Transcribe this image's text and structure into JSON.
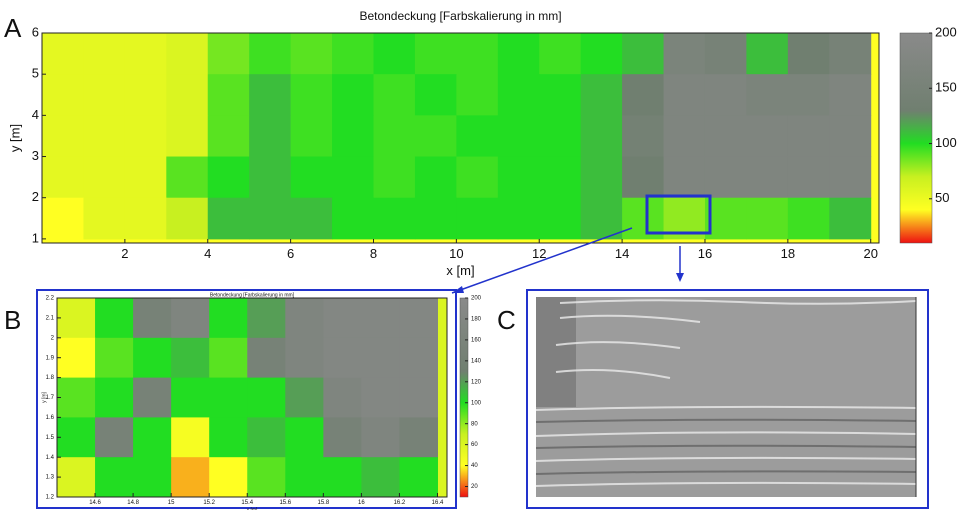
{
  "panel_labels": [
    "A",
    "B",
    "C"
  ],
  "chart_data": [
    {
      "type": "heatmap",
      "title": "Betondeckung [Farbskalierung in mm]",
      "x_label": "x [m]",
      "y_label": "y [m]",
      "x": [
        0.5,
        1.5,
        2.5,
        3.5,
        4.5,
        5.5,
        6.5,
        7.5,
        8.5,
        9.5,
        10.5,
        11.5,
        12.5,
        13.5,
        14.5,
        15.5,
        16.5,
        17.5,
        18.5,
        19.5
      ],
      "y": [
        5.5,
        4.5,
        3.5,
        2.5,
        1.5
      ],
      "z": [
        [
          55,
          55,
          55,
          60,
          85,
          95,
          90,
          95,
          100,
          95,
          95,
          100,
          95,
          100,
          110,
          160,
          150,
          110,
          130,
          150
        ],
        [
          55,
          55,
          55,
          60,
          90,
          110,
          95,
          100,
          95,
          100,
          95,
          100,
          100,
          110,
          130,
          170,
          170,
          160,
          160,
          170
        ],
        [
          55,
          55,
          55,
          60,
          90,
          110,
          95,
          100,
          95,
          95,
          100,
          100,
          100,
          110,
          140,
          170,
          170,
          170,
          170,
          170
        ],
        [
          55,
          55,
          55,
          90,
          100,
          110,
          100,
          100,
          95,
          100,
          95,
          100,
          100,
          110,
          130,
          170,
          170,
          170,
          170,
          170
        ],
        [
          40,
          55,
          55,
          70,
          110,
          110,
          110,
          100,
          100,
          100,
          100,
          100,
          100,
          110,
          90,
          80,
          90,
          90,
          95,
          110
        ]
      ],
      "xlim": [
        0,
        20.2
      ],
      "ylim": [
        0.9,
        6
      ],
      "xticks": [
        2,
        4,
        6,
        8,
        10,
        12,
        14,
        16,
        18,
        20
      ],
      "yticks": [
        1,
        2,
        3,
        4,
        5,
        6
      ],
      "colorscale": [
        [
          10,
          "#ee1111"
        ],
        [
          40,
          "#ffff22"
        ],
        [
          70,
          "#c8f020"
        ],
        [
          100,
          "#22dd22"
        ],
        [
          130,
          "#707f70"
        ],
        [
          200,
          "#8a8a8a"
        ]
      ],
      "clim": [
        10,
        200
      ],
      "cticks": [
        50,
        100,
        150,
        200
      ]
    },
    {
      "type": "heatmap",
      "title": "Betondeckung [Farbskalierung in mm]",
      "x_label": "x [m]",
      "y_label": "y [m]",
      "x": [
        14.5,
        14.7,
        14.9,
        15.1,
        15.3,
        15.5,
        15.7,
        15.9,
        16.1,
        16.3
      ],
      "y": [
        2.1,
        1.9,
        1.7,
        1.5,
        1.3
      ],
      "z": [
        [
          60,
          100,
          150,
          170,
          100,
          120,
          170,
          180,
          180,
          180
        ],
        [
          40,
          90,
          100,
          110,
          90,
          150,
          170,
          180,
          180,
          180
        ],
        [
          90,
          100,
          150,
          100,
          100,
          100,
          120,
          170,
          180,
          180
        ],
        [
          100,
          150,
          100,
          45,
          100,
          110,
          100,
          150,
          170,
          150
        ],
        [
          60,
          100,
          100,
          30,
          40,
          90,
          100,
          100,
          110,
          100
        ]
      ],
      "xlim": [
        14.4,
        16.45
      ],
      "ylim": [
        1.2,
        2.2
      ],
      "xticks": [
        14.6,
        14.8,
        15,
        15.2,
        15.4,
        15.6,
        15.8,
        16,
        16.2,
        16.4
      ],
      "yticks": [
        1.2,
        1.3,
        1.4,
        1.5,
        1.6,
        1.7,
        1.8,
        1.9,
        2,
        2.1,
        2.2
      ],
      "colorscale": [
        [
          10,
          "#ee1111"
        ],
        [
          40,
          "#ffff22"
        ],
        [
          70,
          "#c8f020"
        ],
        [
          100,
          "#22dd22"
        ],
        [
          130,
          "#707f70"
        ],
        [
          200,
          "#8a8a8a"
        ]
      ],
      "clim": [
        10,
        200
      ],
      "cticks": [
        20,
        40,
        60,
        80,
        100,
        120,
        140,
        160,
        180,
        200
      ]
    }
  ]
}
